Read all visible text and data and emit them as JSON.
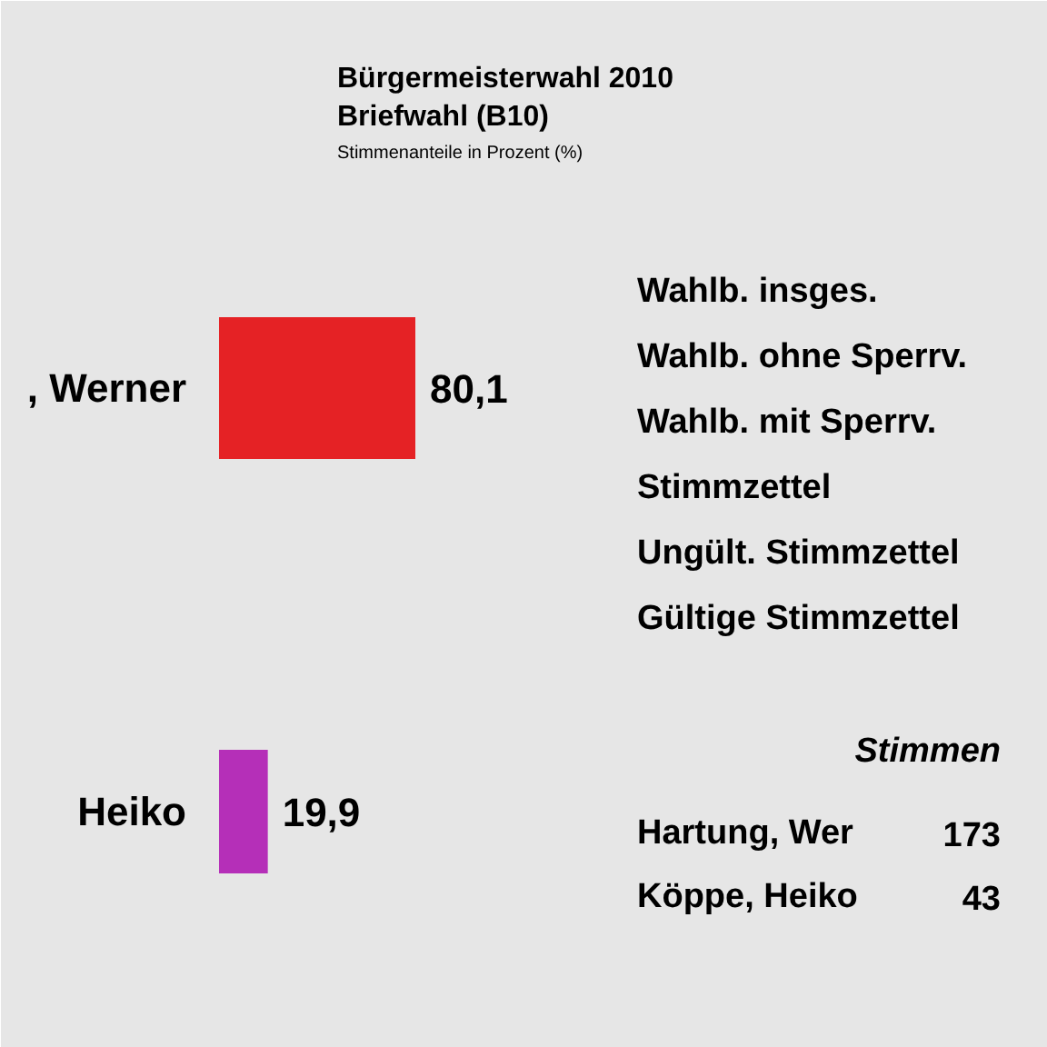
{
  "chart_data": {
    "type": "bar",
    "orientation": "horizontal",
    "title": "Bürgermeisterwahl 2010",
    "subtitle": "Briefwahl (B10)",
    "categories": [
      ", Werner",
      "Heiko"
    ],
    "values": [
      80.1,
      19.9
    ],
    "colors": [
      "#e52225",
      "#b52fb8"
    ],
    "value_labels": [
      "80,1",
      "19,9"
    ],
    "annotations": [
      "Stimmenanteile in Prozent (%)",
      "Wahlb. insges.",
      "Wahlb. ohne Sperrv.",
      "Wahlb. mit Sperrv.",
      "Stimmzettel",
      "Ungült. Stimmzettel",
      "Gültige Stimmzettel",
      "Stimmen",
      "Hartung, Wer",
      "173",
      "Köppe, Heiko",
      "43"
    ]
  }
}
